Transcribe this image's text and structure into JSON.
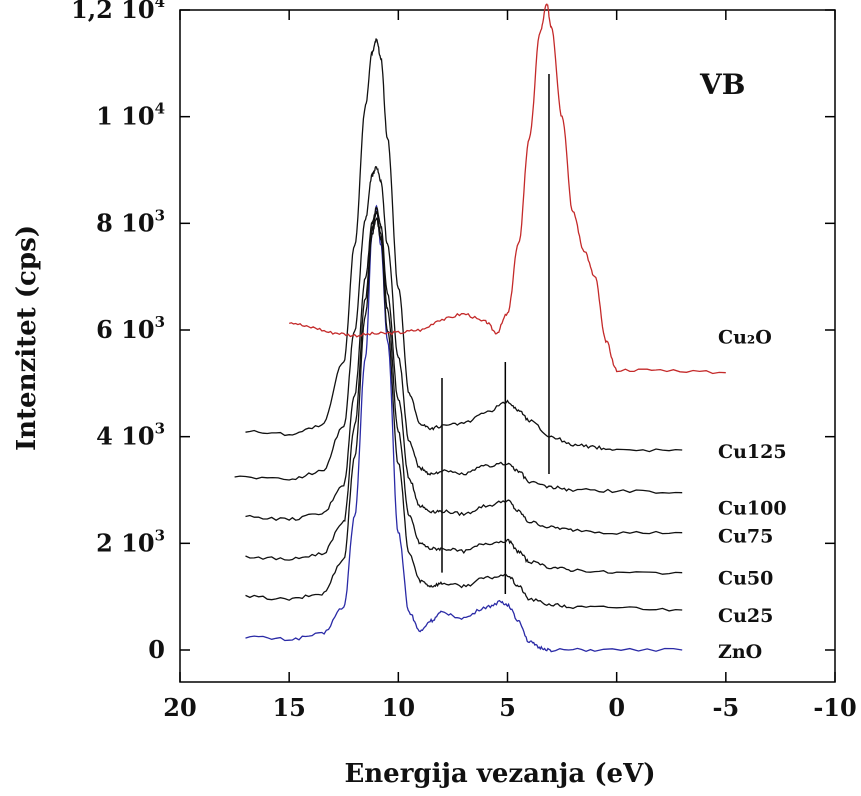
{
  "chart_data": {
    "type": "line",
    "title": "",
    "panel_label": "VB",
    "xlabel": "Energija vezanja (eV)",
    "ylabel": "Intenzitet (cps)",
    "xlim": [
      20,
      -10
    ],
    "ylim": [
      -600,
      12000
    ],
    "x_reversed": true,
    "grid": false,
    "x_ticks": [
      {
        "value": 20,
        "label": "20"
      },
      {
        "value": 15,
        "label": "15"
      },
      {
        "value": 10,
        "label": "10"
      },
      {
        "value": 5,
        "label": "5"
      },
      {
        "value": 0,
        "label": "0"
      },
      {
        "value": -5,
        "label": "-5"
      },
      {
        "value": -10,
        "label": "-10"
      }
    ],
    "y_ticks": [
      {
        "value": 0,
        "label": "0",
        "exp": ""
      },
      {
        "value": 2000,
        "label": "2 10",
        "exp": "3"
      },
      {
        "value": 4000,
        "label": "4 10",
        "exp": "3"
      },
      {
        "value": 6000,
        "label": "6 10",
        "exp": "3"
      },
      {
        "value": 8000,
        "label": "8 10",
        "exp": "3"
      },
      {
        "value": 10000,
        "label": "1 10",
        "exp": "4"
      },
      {
        "value": 12000,
        "label": "1,2 10",
        "exp": "4"
      }
    ],
    "series": [
      {
        "name": "ZnO",
        "color": "#2a2aa6",
        "x": [
          17,
          15,
          13.5,
          12.5,
          12,
          11.5,
          11.2,
          11,
          10.8,
          10.5,
          10,
          9.5,
          9,
          8.5,
          8,
          7,
          6,
          5.3,
          5,
          4.5,
          4,
          3.5,
          3,
          1,
          -3
        ],
        "y": [
          250,
          200,
          300,
          800,
          2500,
          5500,
          7800,
          8300,
          7600,
          5800,
          2200,
          700,
          350,
          550,
          700,
          600,
          800,
          900,
          850,
          550,
          150,
          40,
          0,
          0,
          0
        ]
      },
      {
        "name": "Cu25",
        "color": "#111111",
        "x": [
          17,
          15,
          13.5,
          12.5,
          12,
          11.5,
          11.2,
          11,
          10.8,
          10.5,
          10,
          9.5,
          9,
          8.5,
          8,
          7,
          6,
          5,
          4.5,
          4,
          3,
          2,
          0,
          -3
        ],
        "y": [
          1000,
          950,
          1050,
          1700,
          3600,
          6300,
          7800,
          8100,
          7700,
          6000,
          3500,
          1800,
          1300,
          1200,
          1250,
          1200,
          1350,
          1400,
          1200,
          950,
          850,
          800,
          800,
          750
        ]
      },
      {
        "name": "Cu50",
        "color": "#111111",
        "x": [
          17,
          15,
          13.5,
          12.5,
          12,
          11.5,
          11.2,
          11,
          10.8,
          10.5,
          10,
          9.5,
          9,
          8.5,
          8,
          7,
          6,
          5,
          4.5,
          4,
          3,
          2,
          0,
          -3
        ],
        "y": [
          1750,
          1700,
          1800,
          2400,
          4200,
          6600,
          7900,
          8200,
          7800,
          6400,
          4100,
          2500,
          2000,
          1900,
          1900,
          1850,
          2000,
          2050,
          1850,
          1650,
          1550,
          1500,
          1450,
          1450
        ]
      },
      {
        "name": "Cu75",
        "color": "#111111",
        "x": [
          17,
          15,
          13.5,
          12.5,
          12,
          11.5,
          11.2,
          11,
          10.8,
          10.5,
          10,
          9.5,
          9,
          8.5,
          8,
          7,
          6,
          5,
          4.5,
          4,
          3,
          2,
          0,
          -3
        ],
        "y": [
          2500,
          2450,
          2550,
          3100,
          4800,
          7000,
          8000,
          8300,
          7950,
          6700,
          4700,
          3200,
          2700,
          2600,
          2600,
          2550,
          2700,
          2800,
          2600,
          2400,
          2300,
          2250,
          2200,
          2200
        ]
      },
      {
        "name": "Cu100",
        "color": "#111111",
        "x": [
          17.5,
          15,
          13.5,
          12.5,
          12,
          11.5,
          11.2,
          11,
          10.8,
          10.5,
          10,
          9.5,
          9,
          8.5,
          8,
          7,
          6,
          5,
          4.5,
          4,
          3,
          2,
          0,
          -3
        ],
        "y": [
          3250,
          3200,
          3350,
          4200,
          6000,
          8100,
          8900,
          9050,
          8800,
          7600,
          5500,
          3900,
          3400,
          3300,
          3350,
          3300,
          3450,
          3500,
          3350,
          3150,
          3050,
          3000,
          2980,
          2950
        ]
      },
      {
        "name": "Cu125",
        "color": "#111111",
        "x": [
          17,
          15,
          13.5,
          12.5,
          12,
          11.5,
          11.2,
          11,
          10.8,
          10.5,
          10,
          9.5,
          9,
          8.5,
          8,
          7,
          6,
          5,
          4.5,
          4,
          3,
          2,
          1,
          0,
          -3
        ],
        "y": [
          4100,
          4050,
          4200,
          5400,
          7600,
          10200,
          11200,
          11450,
          11100,
          9600,
          6800,
          4800,
          4250,
          4150,
          4200,
          4250,
          4450,
          4650,
          4500,
          4300,
          4000,
          3850,
          3800,
          3750,
          3750
        ]
      },
      {
        "name": "Cu₂O",
        "color": "#c42a2a",
        "x": [
          15,
          14,
          13,
          12,
          11,
          10,
          9,
          8,
          7,
          6,
          5.5,
          5,
          4.5,
          4,
          3.5,
          3.2,
          3,
          2.5,
          2,
          1.5,
          1,
          0.5,
          0,
          -2,
          -5
        ],
        "y": [
          6150,
          6050,
          5950,
          5900,
          5930,
          5950,
          6000,
          6200,
          6300,
          6150,
          5950,
          6300,
          7600,
          9600,
          11600,
          12100,
          11700,
          10000,
          8200,
          7500,
          7000,
          5800,
          5250,
          5250,
          5200
        ]
      }
    ],
    "reference_lines": [
      {
        "x": 8,
        "y_from": 1450,
        "y_to": 5100
      },
      {
        "x": 5.1,
        "y_from": 1050,
        "y_to": 5400
      },
      {
        "x": 3.1,
        "y_from": 3300,
        "y_to": 10800
      }
    ]
  }
}
